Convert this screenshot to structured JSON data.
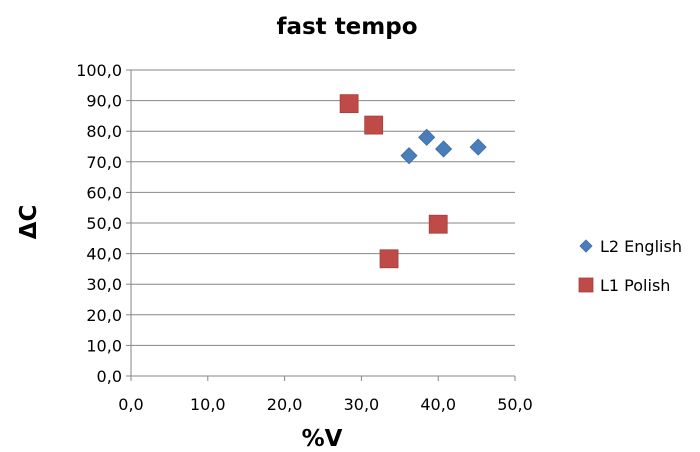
{
  "chart_data": {
    "type": "scatter",
    "title": "fast tempo",
    "xlabel": "%V",
    "ylabel": "ΔC",
    "xlim": [
      0,
      50
    ],
    "ylim": [
      0,
      100
    ],
    "x_ticks": [
      "0,0",
      "10,0",
      "20,0",
      "30,0",
      "40,0",
      "50,0"
    ],
    "y_ticks": [
      "0,0",
      "10,0",
      "20,0",
      "30,0",
      "40,0",
      "50,0",
      "60,0",
      "70,0",
      "80,0",
      "90,0",
      "100,0"
    ],
    "grid": true,
    "legend_position": "right",
    "series": [
      {
        "name": "L2 English",
        "marker": "diamond",
        "color": "#4a7ebb",
        "points": [
          [
            36.2,
            72.0
          ],
          [
            38.5,
            78.0
          ],
          [
            40.7,
            74.2
          ],
          [
            45.2,
            74.8
          ]
        ]
      },
      {
        "name": "L1 Polish",
        "marker": "square",
        "color": "#be4b48",
        "points": [
          [
            28.4,
            89.0
          ],
          [
            31.6,
            82.0
          ],
          [
            33.6,
            38.3
          ],
          [
            40.0,
            49.6
          ]
        ]
      }
    ]
  }
}
